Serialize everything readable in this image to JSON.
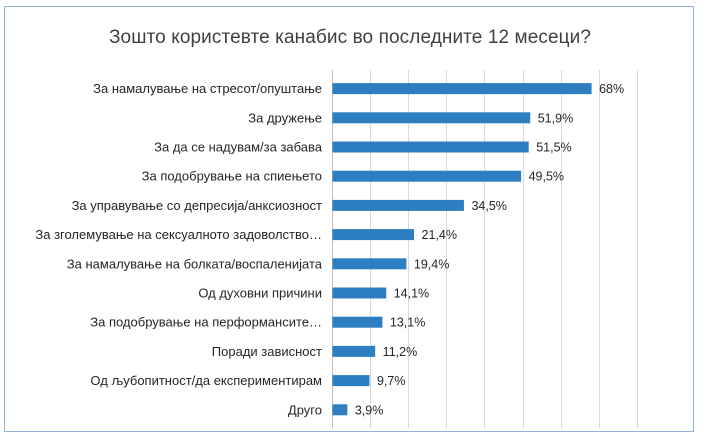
{
  "chart_data": {
    "type": "bar",
    "orientation": "horizontal",
    "title": "Зошто користевте канабис во последните 12 месеци?",
    "categories": [
      "За намалување на стресот/опуштање",
      "За дружење",
      "За да се надувам/за забава",
      "За подобрување на спиењето",
      "За управување со депресија/анксиозност",
      "За зголемување на сексуалното задоволство…",
      "За намалување на болката/воспаленијата",
      "Од духовни причини",
      "За подобрување на перформансите…",
      "Поради зависност",
      "Од љубопитност/да експериментирам",
      "Друго"
    ],
    "values": [
      68,
      51.9,
      51.5,
      49.5,
      34.5,
      21.4,
      19.4,
      14.1,
      13.1,
      11.2,
      9.7,
      3.9
    ],
    "data_labels": [
      "68%",
      "51,9%",
      "51,5%",
      "49,5%",
      "34,5%",
      "21,4%",
      "19,4%",
      "14,1%",
      "13,1%",
      "11,2%",
      "9,7%",
      "3,9%"
    ],
    "xlim": [
      0,
      80
    ],
    "grid": true,
    "legend": "none",
    "bar_color": "#2e7fc2"
  }
}
